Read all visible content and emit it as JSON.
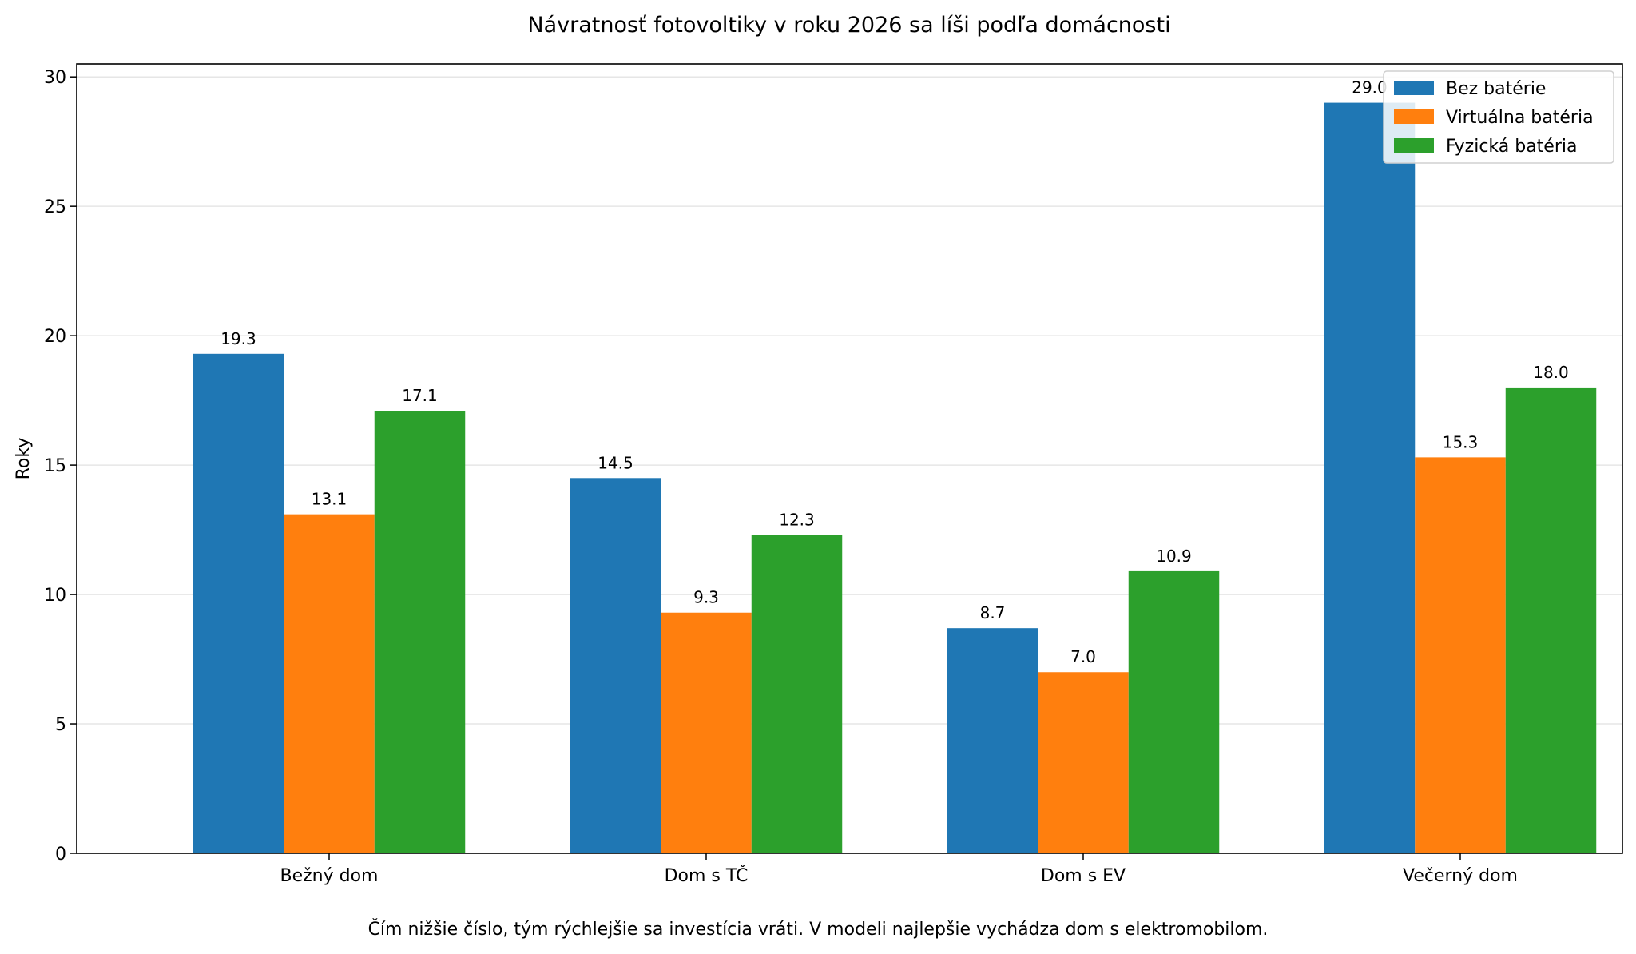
{
  "chart_data": {
    "type": "bar",
    "title": "Návratnosť fotovoltiky v roku 2026 sa líši podľa domácnosti",
    "ylabel": "Roky",
    "xlabel": "",
    "caption": "Čím nižšie číslo, tým rýchlejšie sa investícia vráti. V modeli najlepšie vychádza dom s elektromobilom.",
    "categories": [
      "Bežný dom",
      "Dom s TČ",
      "Dom s EV",
      "Večerný dom"
    ],
    "series": [
      {
        "name": "Bez batérie",
        "color": "#1f77b4",
        "values": [
          19.3,
          14.5,
          8.7,
          29.0
        ]
      },
      {
        "name": "Virtuálna batéria",
        "color": "#ff7f0e",
        "values": [
          13.1,
          9.3,
          7.0,
          15.3
        ]
      },
      {
        "name": "Fyzická batéria",
        "color": "#2ca02c",
        "values": [
          17.1,
          12.3,
          10.9,
          18.0
        ]
      }
    ],
    "ylim": [
      0,
      30.5
    ],
    "yticks": [
      0,
      5,
      10,
      15,
      20,
      25,
      30
    ],
    "grid": "horizontal",
    "legend_position": "top-right",
    "value_labels": true,
    "value_label_format": "0.0"
  }
}
